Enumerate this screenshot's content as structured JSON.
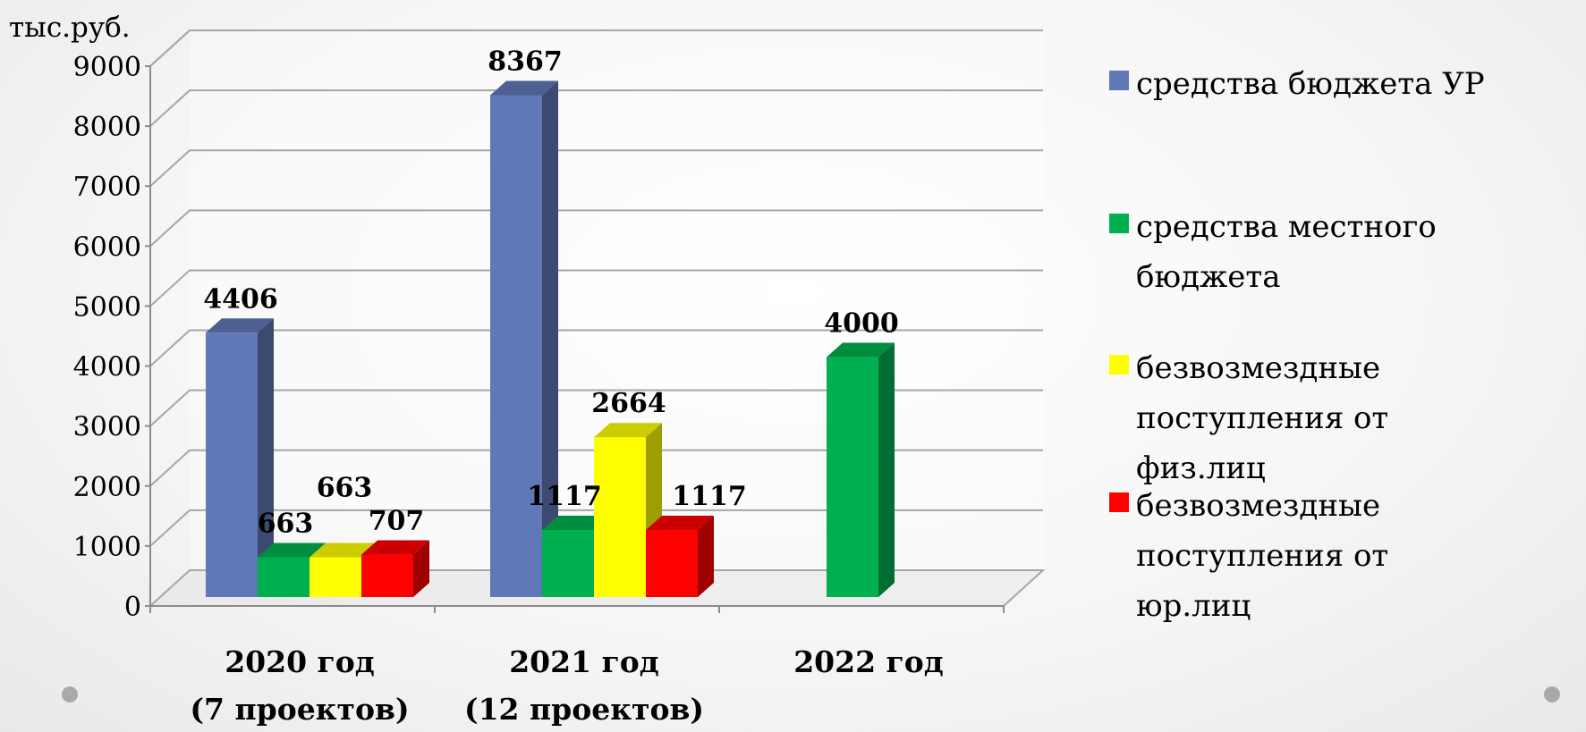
{
  "chart_data": {
    "type": "bar",
    "unit_label": "тыс.руб.",
    "categories": [
      [
        "2020 год",
        "(7 проектов)"
      ],
      [
        "2021 год",
        "(12 проектов)"
      ],
      [
        "2022 год",
        ""
      ]
    ],
    "yticks": [
      "0",
      "1000",
      "2000",
      "3000",
      "4000",
      "5000",
      "6000",
      "7000",
      "8000",
      "9000"
    ],
    "ylim": [
      0,
      9000
    ],
    "grid": true,
    "legend_position": "right",
    "series": [
      {
        "name": "средства бюджета УР",
        "color": "#6077b8",
        "values": [
          4406,
          8367,
          null
        ],
        "labels": [
          "4406",
          "8367",
          ""
        ]
      },
      {
        "name": "средства местного бюджета",
        "color": "#00b050",
        "values": [
          663,
          1117,
          4000
        ],
        "labels": [
          "663",
          "1117",
          "4000"
        ]
      },
      {
        "name": "безвозмездные поступления от физ.лиц",
        "color": "#ffff00",
        "values": [
          663,
          2664,
          null
        ],
        "labels": [
          "663",
          "2664",
          ""
        ]
      },
      {
        "name": "безвозмездные поступления от юр.лиц",
        "color": "#ff0000",
        "values": [
          707,
          1117,
          null
        ],
        "labels": [
          "707",
          "1117",
          ""
        ]
      }
    ]
  }
}
